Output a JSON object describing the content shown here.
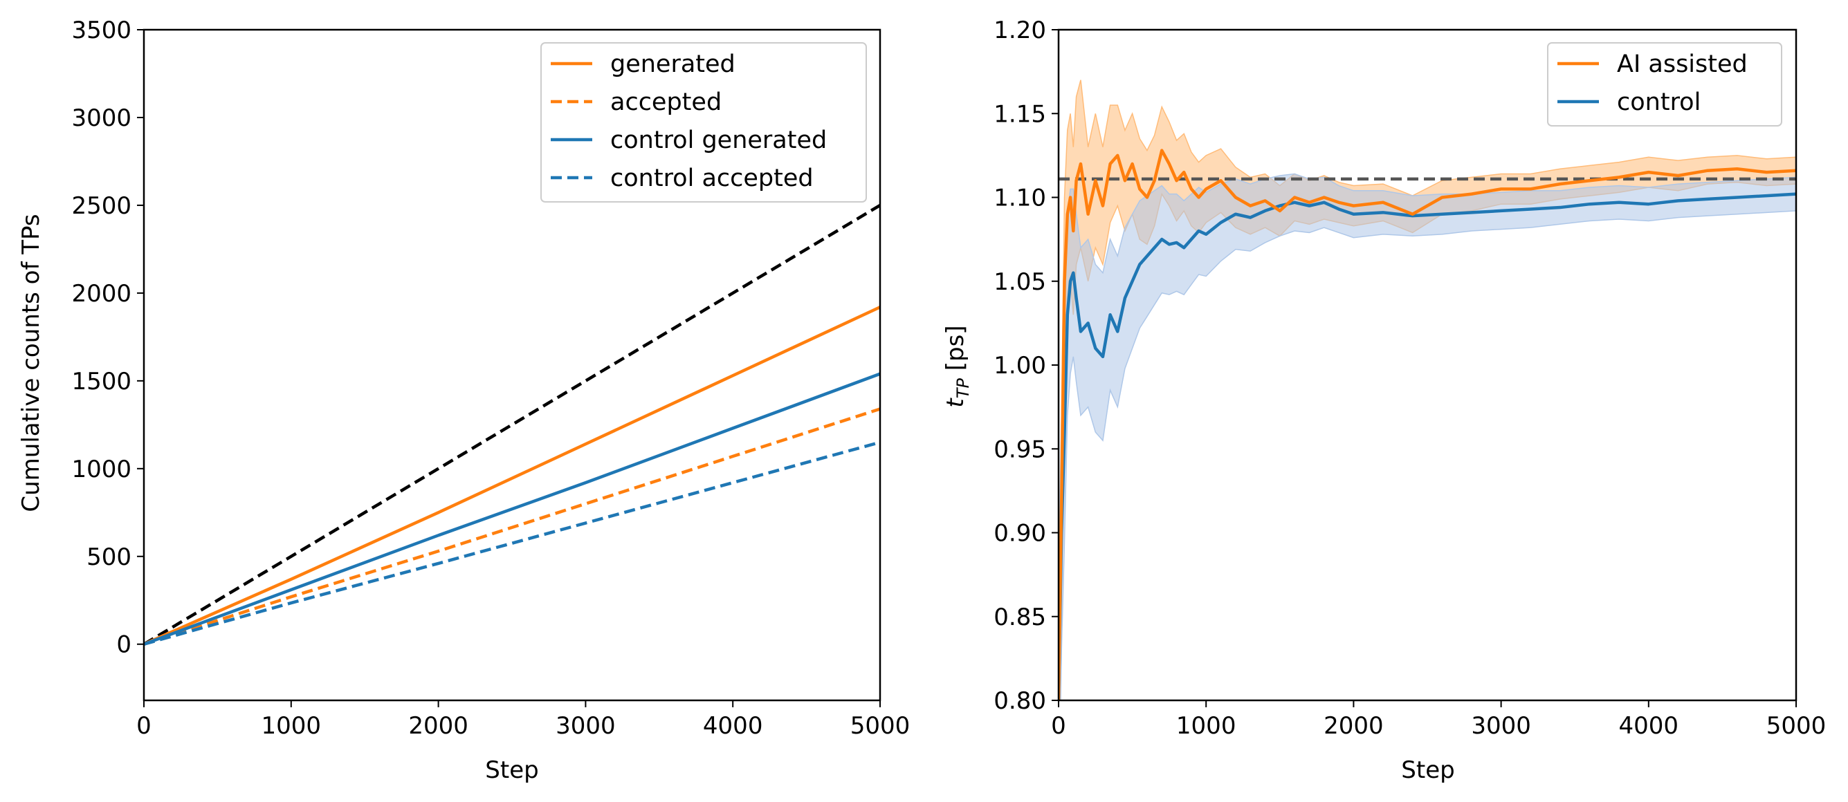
{
  "chart_data": [
    {
      "type": "line",
      "xlabel": "Step",
      "ylabel": "Cumulative counts of TPs",
      "xlim": [
        0,
        5000
      ],
      "ylim": [
        -320,
        3500
      ],
      "xticks": [
        "0",
        "1000",
        "2000",
        "3000",
        "4000",
        "5000"
      ],
      "yticks": [
        "0",
        "500",
        "1000",
        "1500",
        "2000",
        "2500",
        "3000",
        "3500"
      ],
      "legend_position": "top-right",
      "series": [
        {
          "name": "generated",
          "color": "#ff7f0e",
          "style": "solid",
          "x": [
            0,
            1000,
            2000,
            3000,
            4000,
            5000
          ],
          "values": [
            0,
            370,
            750,
            1140,
            1530,
            1920
          ]
        },
        {
          "name": "accepted",
          "color": "#ff7f0e",
          "style": "dashed",
          "x": [
            0,
            1000,
            2000,
            3000,
            4000,
            5000
          ],
          "values": [
            0,
            270,
            530,
            800,
            1070,
            1340
          ]
        },
        {
          "name": "control generated",
          "color": "#1f77b4",
          "style": "solid",
          "x": [
            0,
            1000,
            2000,
            3000,
            4000,
            5000
          ],
          "values": [
            0,
            310,
            620,
            920,
            1230,
            1540
          ]
        },
        {
          "name": "control accepted",
          "color": "#1f77b4",
          "style": "dashed",
          "x": [
            0,
            1000,
            2000,
            3000,
            4000,
            5000
          ],
          "values": [
            0,
            235,
            460,
            690,
            920,
            1150
          ]
        }
      ],
      "reference_line": {
        "color": "#000000",
        "style": "dashed",
        "x": [
          0,
          5000
        ],
        "values": [
          0,
          2500
        ]
      }
    },
    {
      "type": "line",
      "xlabel": "Step",
      "ylabel_main": "t",
      "ylabel_sub": "TP",
      "ylabel_unit": " [ps]",
      "xlim": [
        0,
        5000
      ],
      "ylim": [
        0.8,
        1.2
      ],
      "xticks": [
        "0",
        "1000",
        "2000",
        "3000",
        "4000",
        "5000"
      ],
      "yticks": [
        "0.80",
        "0.85",
        "0.90",
        "0.95",
        "1.00",
        "1.05",
        "1.10",
        "1.15",
        "1.20"
      ],
      "legend_position": "top-right",
      "reference_line": {
        "color": "#555555",
        "style": "dashed",
        "value": 1.111
      },
      "series": [
        {
          "name": "AI assisted",
          "color": "#ff7f0e",
          "band_color": "#ffbb78",
          "x": [
            0,
            20,
            40,
            60,
            80,
            100,
            120,
            150,
            200,
            250,
            300,
            350,
            400,
            450,
            500,
            550,
            600,
            650,
            700,
            750,
            800,
            850,
            900,
            950,
            1000,
            1100,
            1200,
            1300,
            1400,
            1500,
            1600,
            1700,
            1800,
            1900,
            2000,
            2200,
            2400,
            2600,
            2800,
            3000,
            3200,
            3400,
            3600,
            3800,
            4000,
            4200,
            4400,
            4600,
            4800,
            5000
          ],
          "values": [
            0.8,
            0.92,
            1.05,
            1.09,
            1.1,
            1.08,
            1.11,
            1.12,
            1.09,
            1.11,
            1.095,
            1.12,
            1.125,
            1.11,
            1.12,
            1.105,
            1.1,
            1.11,
            1.128,
            1.12,
            1.11,
            1.115,
            1.105,
            1.1,
            1.105,
            1.11,
            1.1,
            1.095,
            1.098,
            1.092,
            1.1,
            1.097,
            1.1,
            1.097,
            1.095,
            1.097,
            1.09,
            1.1,
            1.102,
            1.105,
            1.105,
            1.108,
            1.11,
            1.112,
            1.115,
            1.113,
            1.116,
            1.117,
            1.115,
            1.116
          ],
          "band_halfwidth": [
            0.05,
            0.05,
            0.05,
            0.05,
            0.05,
            0.05,
            0.05,
            0.05,
            0.04,
            0.04,
            0.035,
            0.035,
            0.03,
            0.03,
            0.03,
            0.03,
            0.028,
            0.027,
            0.026,
            0.025,
            0.024,
            0.023,
            0.022,
            0.021,
            0.02,
            0.019,
            0.018,
            0.017,
            0.016,
            0.015,
            0.014,
            0.013,
            0.013,
            0.012,
            0.012,
            0.011,
            0.011,
            0.01,
            0.01,
            0.009,
            0.009,
            0.009,
            0.009,
            0.009,
            0.009,
            0.009,
            0.008,
            0.008,
            0.008,
            0.008
          ]
        },
        {
          "name": "control",
          "color": "#1f77b4",
          "band_color": "#aec7e8",
          "x": [
            0,
            20,
            40,
            60,
            80,
            100,
            120,
            150,
            200,
            250,
            300,
            350,
            400,
            450,
            500,
            550,
            600,
            650,
            700,
            750,
            800,
            850,
            900,
            950,
            1000,
            1100,
            1200,
            1300,
            1400,
            1500,
            1600,
            1700,
            1800,
            1900,
            2000,
            2200,
            2400,
            2600,
            2800,
            3000,
            3200,
            3400,
            3600,
            3800,
            4000,
            4200,
            4400,
            4600,
            4800,
            5000
          ],
          "values": [
            0.8,
            0.9,
            0.96,
            1.03,
            1.05,
            1.055,
            1.04,
            1.02,
            1.025,
            1.01,
            1.005,
            1.03,
            1.02,
            1.04,
            1.05,
            1.06,
            1.065,
            1.07,
            1.075,
            1.072,
            1.073,
            1.07,
            1.075,
            1.08,
            1.078,
            1.085,
            1.09,
            1.088,
            1.092,
            1.095,
            1.097,
            1.095,
            1.097,
            1.093,
            1.09,
            1.091,
            1.089,
            1.09,
            1.091,
            1.092,
            1.093,
            1.094,
            1.096,
            1.097,
            1.096,
            1.098,
            1.099,
            1.1,
            1.101,
            1.102
          ],
          "band_halfwidth": [
            0.07,
            0.07,
            0.065,
            0.06,
            0.055,
            0.05,
            0.05,
            0.05,
            0.05,
            0.05,
            0.05,
            0.045,
            0.045,
            0.042,
            0.04,
            0.038,
            0.036,
            0.034,
            0.032,
            0.03,
            0.029,
            0.028,
            0.027,
            0.026,
            0.025,
            0.023,
            0.021,
            0.02,
            0.019,
            0.018,
            0.017,
            0.016,
            0.015,
            0.014,
            0.014,
            0.013,
            0.012,
            0.012,
            0.011,
            0.011,
            0.011,
            0.01,
            0.01,
            0.01,
            0.01,
            0.01,
            0.01,
            0.01,
            0.01,
            0.01
          ]
        }
      ]
    }
  ]
}
